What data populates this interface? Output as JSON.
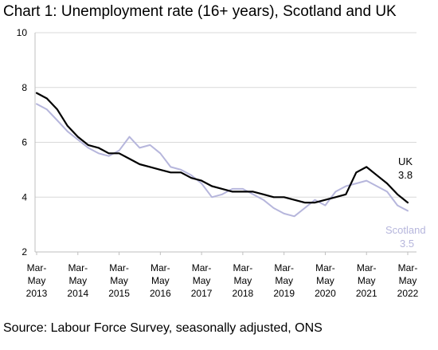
{
  "chart_data": {
    "type": "line",
    "title": "Chart 1: Unemployment rate (16+ years), Scotland and UK",
    "source": "Source: Labour Force Survey, seasonally adjusted, ONS",
    "xlabel": "",
    "ylabel": "",
    "ylim": [
      2,
      10
    ],
    "yticks": [
      "2",
      "4",
      "6",
      "8",
      "10"
    ],
    "grid": "horizontal",
    "legend": "direct labels at line ends",
    "xtick_labels": [
      {
        "line1": "Mar-",
        "line2": "May",
        "line3": "2013"
      },
      {
        "line1": "Mar-",
        "line2": "May",
        "line3": "2014"
      },
      {
        "line1": "Mar-",
        "line2": "May",
        "line3": "2015"
      },
      {
        "line1": "Mar-",
        "line2": "May",
        "line3": "2016"
      },
      {
        "line1": "Mar-",
        "line2": "May",
        "line3": "2017"
      },
      {
        "line1": "Mar-",
        "line2": "May",
        "line3": "2018"
      },
      {
        "line1": "Mar-",
        "line2": "May",
        "line3": "2019"
      },
      {
        "line1": "Mar-",
        "line2": "May",
        "line3": "2020"
      },
      {
        "line1": "Mar-",
        "line2": "May",
        "line3": "2021"
      },
      {
        "line1": "Mar-",
        "line2": "May",
        "line3": "2022"
      }
    ],
    "x": [
      2013.0,
      2013.25,
      2013.5,
      2013.75,
      2014.0,
      2014.25,
      2014.5,
      2014.75,
      2015.0,
      2015.25,
      2015.5,
      2015.75,
      2016.0,
      2016.25,
      2016.5,
      2016.75,
      2017.0,
      2017.25,
      2017.5,
      2017.75,
      2018.0,
      2018.25,
      2018.5,
      2018.75,
      2019.0,
      2019.25,
      2019.5,
      2019.75,
      2020.0,
      2020.25,
      2020.5,
      2020.75,
      2021.0,
      2021.25,
      2021.5,
      2021.75,
      2022.0
    ],
    "series": [
      {
        "name": "UK",
        "end_label": "UK",
        "end_value": "3.8",
        "color": "#000000",
        "values": [
          7.8,
          7.6,
          7.2,
          6.6,
          6.2,
          5.9,
          5.8,
          5.6,
          5.6,
          5.4,
          5.2,
          5.1,
          5.0,
          4.9,
          4.9,
          4.7,
          4.6,
          4.4,
          4.3,
          4.2,
          4.2,
          4.2,
          4.1,
          4.0,
          4.0,
          3.9,
          3.8,
          3.8,
          3.9,
          4.0,
          4.1,
          4.9,
          5.1,
          4.8,
          4.5,
          4.1,
          3.8
        ]
      },
      {
        "name": "Scotland",
        "end_label": "Scotland",
        "end_value": "3.5",
        "color": "#b6b6dc",
        "values": [
          7.4,
          7.2,
          6.8,
          6.4,
          6.1,
          5.8,
          5.6,
          5.5,
          5.7,
          6.2,
          5.8,
          5.9,
          5.6,
          5.1,
          5.0,
          4.8,
          4.5,
          4.0,
          4.1,
          4.3,
          4.3,
          4.1,
          3.9,
          3.6,
          3.4,
          3.3,
          3.6,
          3.9,
          3.7,
          4.2,
          4.4,
          4.5,
          4.6,
          4.4,
          4.2,
          3.7,
          3.5
        ]
      }
    ]
  }
}
